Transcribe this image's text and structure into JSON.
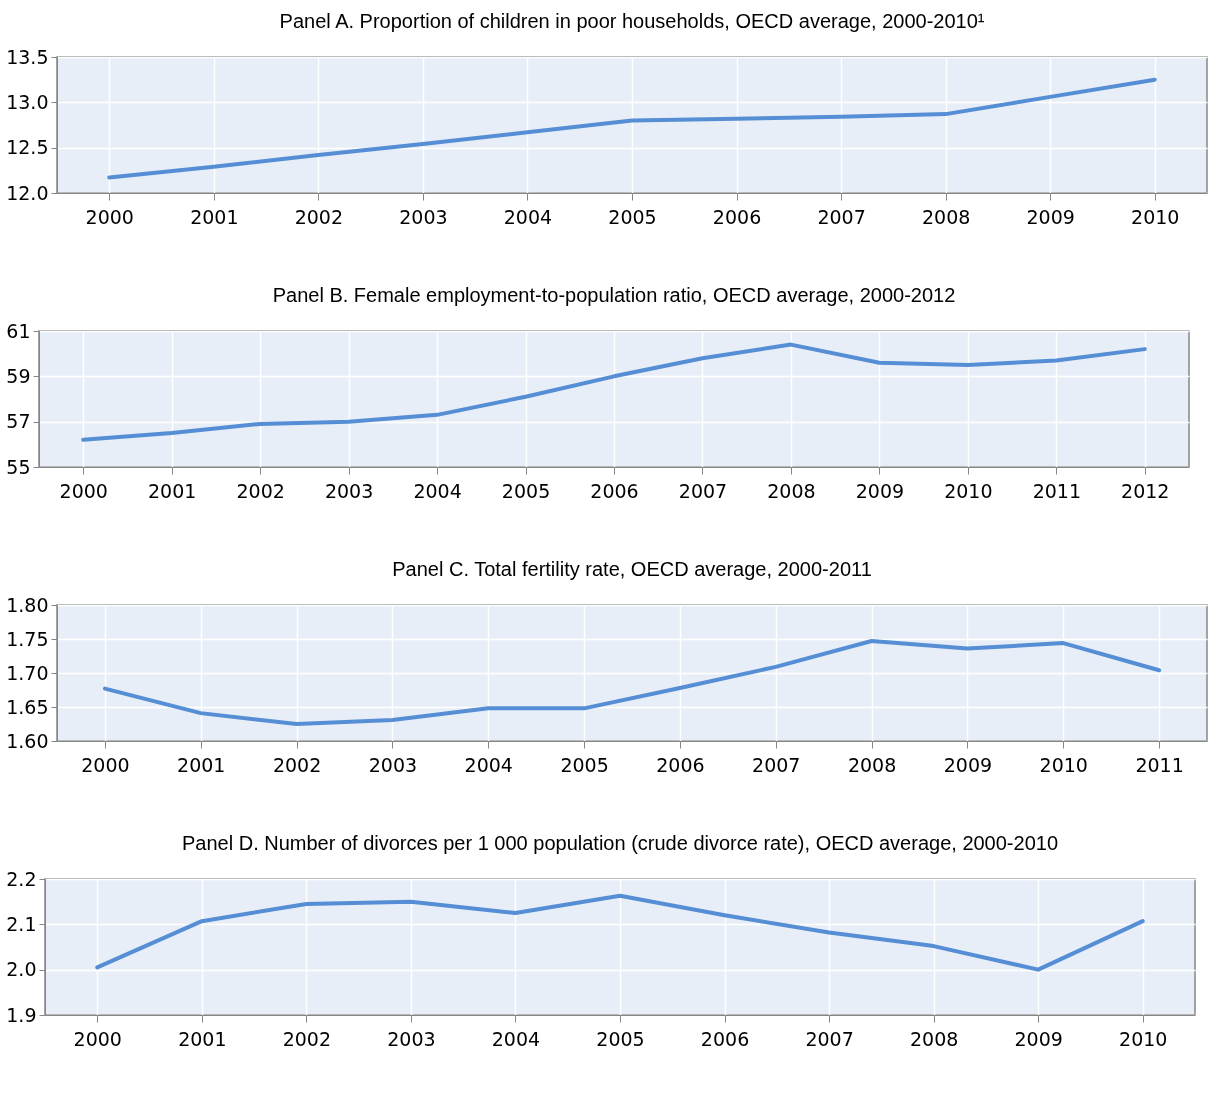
{
  "chart_data": [
    {
      "type": "line",
      "title": "Panel A. Proportion of children in poor households, OECD average, 2000-2010¹",
      "categories": [
        "2000",
        "2001",
        "2002",
        "2003",
        "2004",
        "2005",
        "2006",
        "2007",
        "2008",
        "2009",
        "2010"
      ],
      "series": [
        {
          "color": "#558ed5",
          "values": [
            12.17,
            12.29,
            12.42,
            12.54,
            12.67,
            12.8,
            12.82,
            12.84,
            12.87,
            13.06,
            13.25
          ]
        }
      ],
      "ylim": [
        12.0,
        13.5
      ],
      "yticks": [
        {
          "value": 12,
          "label": "12.0"
        },
        {
          "value": 12.5,
          "label": "12.5"
        },
        {
          "value": 13,
          "label": "13.0"
        },
        {
          "value": 13.5,
          "label": "13.5"
        }
      ],
      "grid": true
    },
    {
      "type": "line",
      "title": "Panel B. Female employment-to-population ratio, OECD average, 2000-2012",
      "categories": [
        "2000",
        "2001",
        "2002",
        "2003",
        "2004",
        "2005",
        "2006",
        "2007",
        "2008",
        "2009",
        "2010",
        "2011",
        "2012"
      ],
      "series": [
        {
          "color": "#558ed5",
          "values": [
            56.2,
            56.5,
            56.9,
            57.0,
            57.3,
            58.1,
            59.0,
            59.8,
            60.4,
            59.6,
            59.5,
            59.7,
            60.2
          ]
        }
      ],
      "ylim": [
        55,
        61
      ],
      "yticks": [
        55,
        57,
        59,
        61
      ],
      "grid": true
    },
    {
      "type": "line",
      "title": "Panel C. Total fertility rate, OECD average, 2000-2011",
      "categories": [
        "2000",
        "2001",
        "2002",
        "2003",
        "2004",
        "2005",
        "2006",
        "2007",
        "2008",
        "2009",
        "2010",
        "2011"
      ],
      "series": [
        {
          "color": "#558ed5",
          "values": [
            1.677,
            1.641,
            1.625,
            1.631,
            1.648,
            1.648,
            1.678,
            1.709,
            1.747,
            1.736,
            1.744,
            1.704
          ]
        }
      ],
      "ylim": [
        1.6,
        1.8
      ],
      "yticks": [
        {
          "value": 1.6,
          "label": "1.60"
        },
        {
          "value": 1.65,
          "label": "1.65"
        },
        {
          "value": 1.7,
          "label": "1.70"
        },
        {
          "value": 1.75,
          "label": "1.75"
        },
        {
          "value": 1.8,
          "label": "1.80"
        }
      ],
      "grid": true
    },
    {
      "type": "line",
      "title": "Panel D. Number of divorces per 1 000 population (crude divorce rate), OECD average, 2000-2010",
      "categories": [
        "2000",
        "2001",
        "2002",
        "2003",
        "2004",
        "2005",
        "2006",
        "2007",
        "2008",
        "2009",
        "2010"
      ],
      "series": [
        {
          "color": "#558ed5",
          "values": [
            2.005,
            2.107,
            2.145,
            2.15,
            2.125,
            2.163,
            2.12,
            2.082,
            2.052,
            2.0,
            2.107
          ]
        }
      ],
      "ylim": [
        1.9,
        2.2
      ],
      "yticks": [
        {
          "value": 1.9,
          "label": "1.9"
        },
        {
          "value": 2,
          "label": "2.0"
        },
        {
          "value": 2.1,
          "label": "2.1"
        },
        {
          "value": 2.2,
          "label": "2.2"
        }
      ],
      "grid": true
    }
  ]
}
